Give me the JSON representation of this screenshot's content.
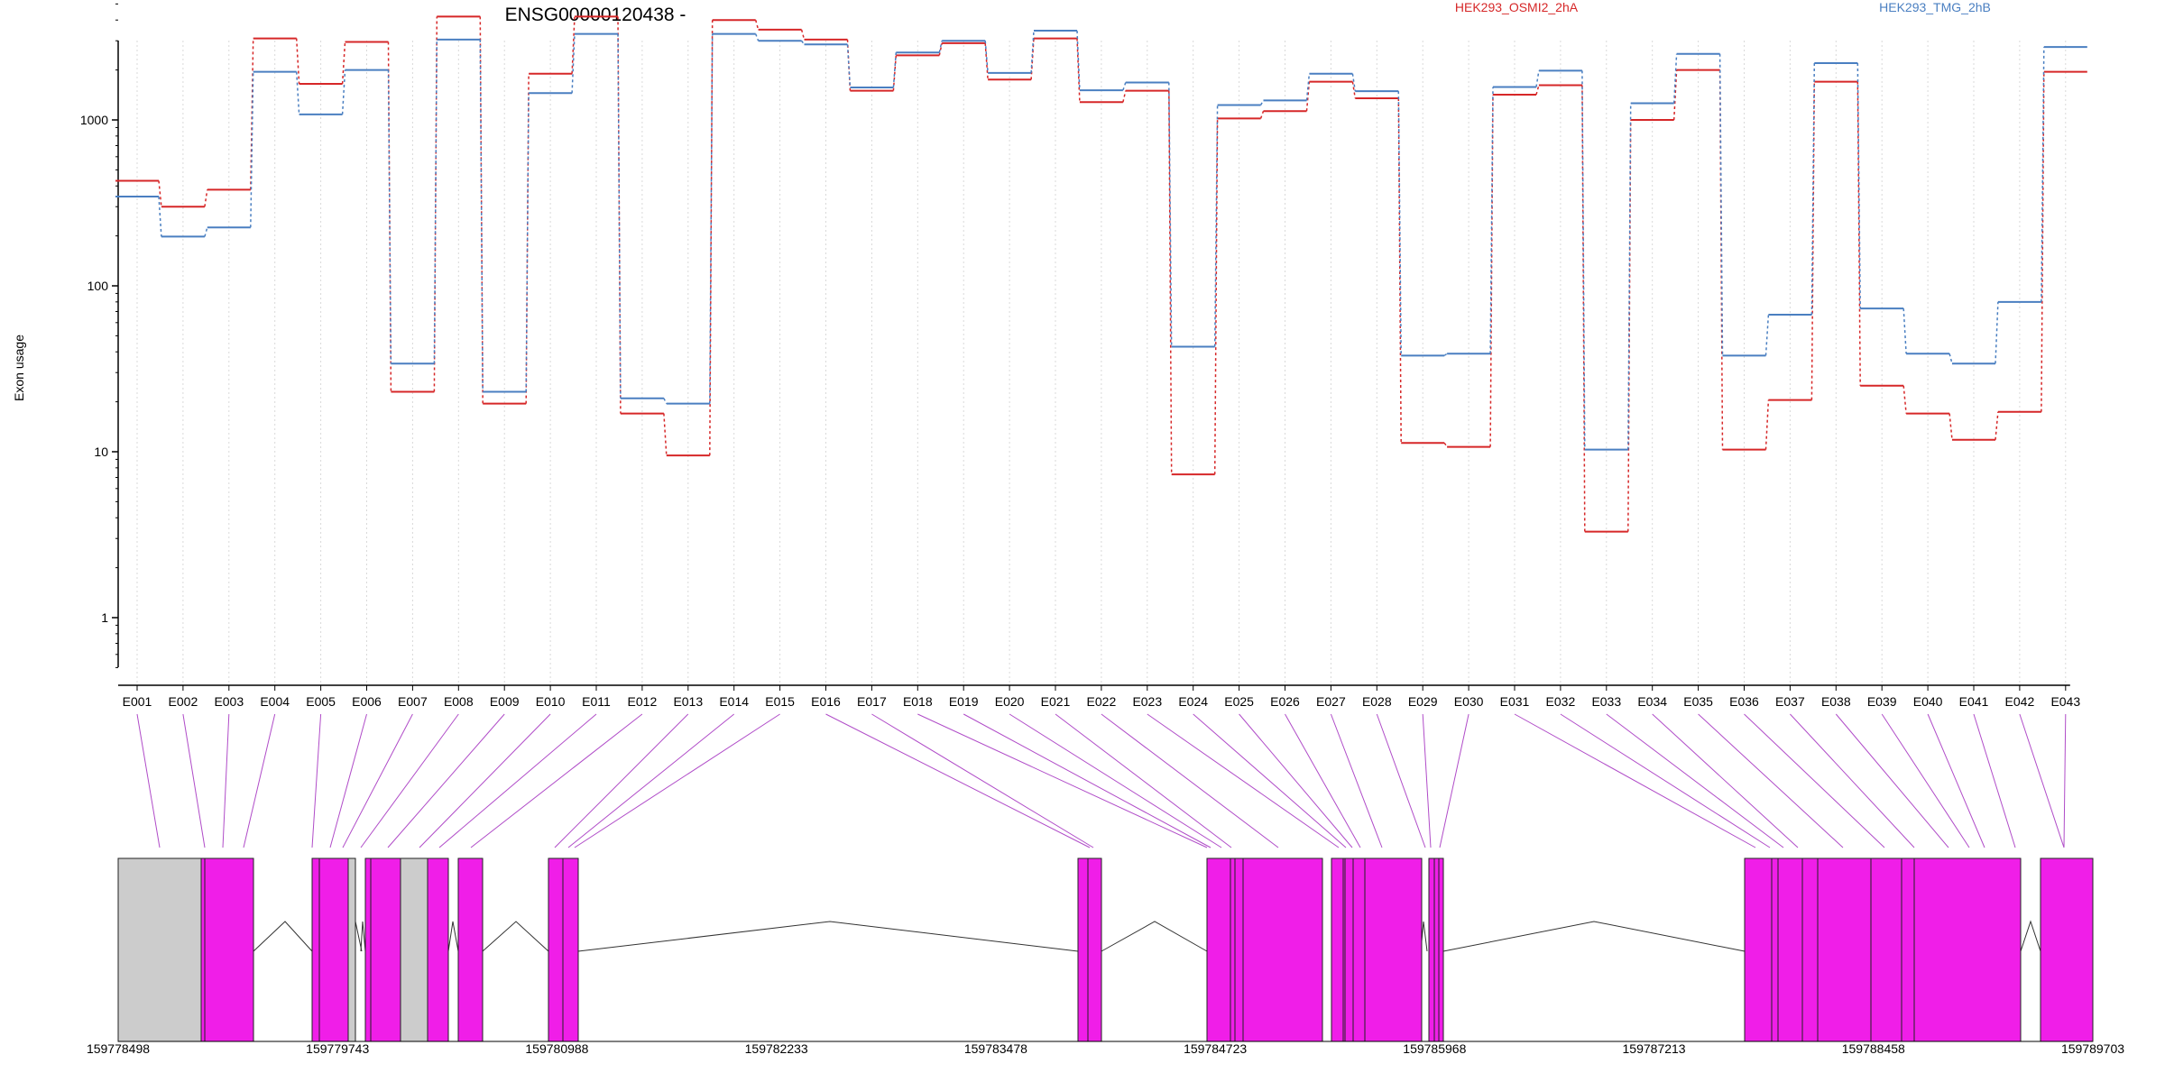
{
  "chart_data": {
    "type": "line",
    "title": "ENSG00000120438 -",
    "ylabel": "Exon usage",
    "xlabel": "",
    "y_scale": "log",
    "ylim": [
      0.5,
      5000
    ],
    "grid": "vertical dotted lines at each exon",
    "y_ticks": [
      {
        "value": 1,
        "label": "1"
      },
      {
        "value": 10,
        "label": "10"
      },
      {
        "value": 100,
        "label": "100"
      },
      {
        "value": 1000,
        "label": "1000"
      }
    ],
    "categories": [
      "E001",
      "E002",
      "E003",
      "E004",
      "E005",
      "E006",
      "E007",
      "E008",
      "E009",
      "E010",
      "E011",
      "E012",
      "E013",
      "E014",
      "E015",
      "E016",
      "E017",
      "E018",
      "E019",
      "E020",
      "E021",
      "E022",
      "E023",
      "E024",
      "E025",
      "E026",
      "E027",
      "E028",
      "E029",
      "E030",
      "E031",
      "E032",
      "E033",
      "E034",
      "E035",
      "E036",
      "E037",
      "E038",
      "E039",
      "E040",
      "E041",
      "E042",
      "E043"
    ],
    "series": [
      {
        "name": "HEK293_OSMI2_2hA",
        "color": "#d62728",
        "values": [
          430,
          300,
          380,
          3100,
          1650,
          2950,
          23,
          4200,
          19.5,
          1900,
          4200,
          17,
          9.5,
          4000,
          3500,
          3050,
          1500,
          2450,
          2900,
          1750,
          3100,
          1280,
          1500,
          7.3,
          1020,
          1130,
          1700,
          1350,
          11.3,
          10.7,
          1420,
          1620,
          3.3,
          1000,
          2000,
          10.3,
          20.5,
          1700,
          25,
          17,
          11.8,
          17.4,
          1950
        ]
      },
      {
        "name": "HEK293_TMG_2hB",
        "color": "#4a7fc1",
        "values": [
          345,
          198,
          225,
          1950,
          1080,
          2000,
          34,
          3050,
          23,
          1450,
          3300,
          21,
          19.5,
          3300,
          3000,
          2850,
          1570,
          2550,
          3000,
          1920,
          3450,
          1510,
          1680,
          43,
          1230,
          1310,
          1900,
          1490,
          38,
          39,
          1580,
          1980,
          10.3,
          1260,
          2500,
          38,
          67,
          2200,
          73,
          39,
          34,
          80,
          2750
        ]
      }
    ],
    "gene_model": {
      "coordinates": [
        "159778498",
        "159779743",
        "159780988",
        "159782233",
        "159783478",
        "159784723",
        "159785968",
        "159787213",
        "159788458",
        "159789703"
      ],
      "exon_color": "#f01ee8",
      "shared_color": "#cccccc",
      "connector_color": "#b04cc8"
    }
  }
}
